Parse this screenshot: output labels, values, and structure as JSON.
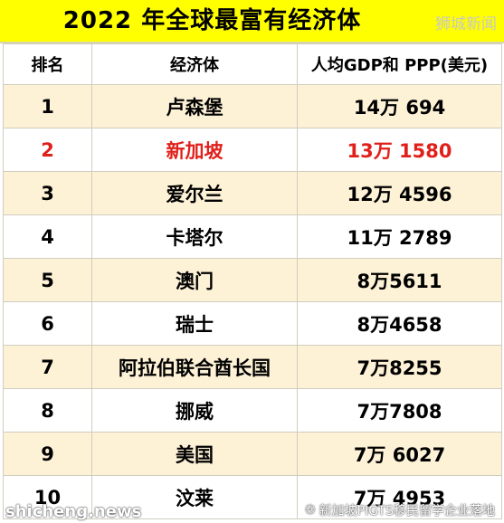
{
  "title": "2022 年全球最富有经济体",
  "watermark_top": "狮城新闻",
  "watermark_bottom_left": "shicheng.news",
  "watermark_bottom_right": "新加坡PIGTS移民留学企业落地",
  "chart_data": {
    "type": "table",
    "title": "2022 年全球最富有经济体",
    "columns": [
      "排名",
      "经济体",
      "人均GDP和 PPP(美元)"
    ],
    "rows": [
      {
        "rank": "1",
        "name": "卢森堡",
        "value": "14万 694"
      },
      {
        "rank": "2",
        "name": "新加坡",
        "value": "13万 1580"
      },
      {
        "rank": "3",
        "name": "爱尔兰",
        "value": "12万 4596"
      },
      {
        "rank": "4",
        "name": "卡塔尔",
        "value": "11万 2789"
      },
      {
        "rank": "5",
        "name": "澳门",
        "value": "8万5611"
      },
      {
        "rank": "6",
        "name": "瑞士",
        "value": "8万4658"
      },
      {
        "rank": "7",
        "name": "阿拉伯联合酋长国",
        "value": "7万8255"
      },
      {
        "rank": "8",
        "name": "挪威",
        "value": "7万7808"
      },
      {
        "rank": "9",
        "name": "美国",
        "value": "7万 6027"
      },
      {
        "rank": "10",
        "name": "汶莱",
        "value": "7万 4953"
      }
    ],
    "highlight_row": 1,
    "colors": {
      "header_bar": "#ffff00",
      "row_tint": "#fdf1d6",
      "highlight_text": "#e0201b"
    }
  }
}
